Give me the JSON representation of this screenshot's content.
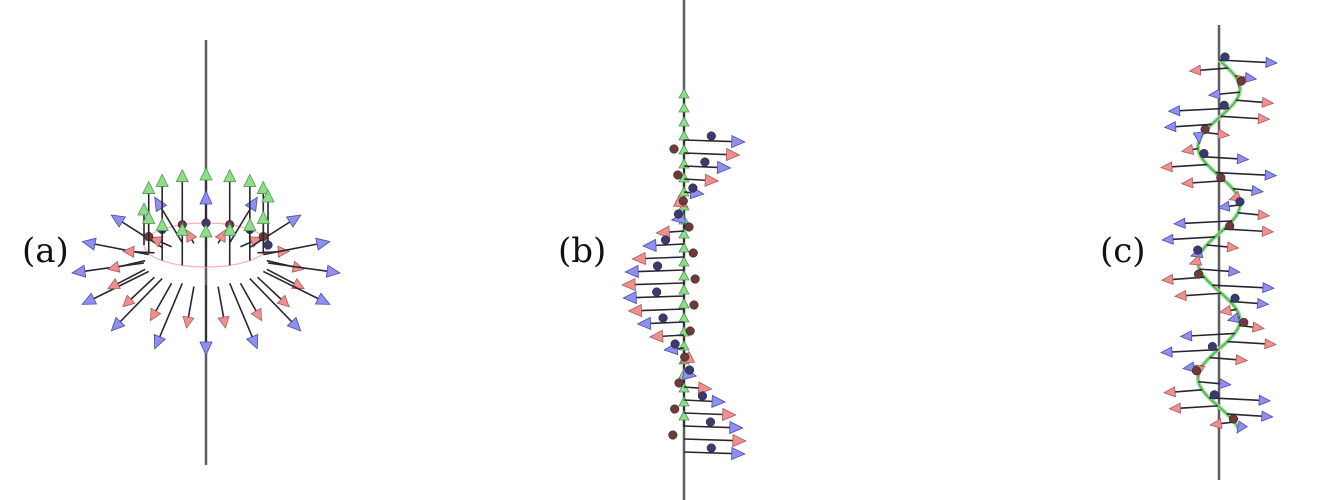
{
  "panels": [
    {
      "label": "(a)",
      "configuration": "ring"
    },
    {
      "label": "(b)",
      "configuration": "single-helix"
    },
    {
      "label": "(c)",
      "configuration": "double-helix"
    }
  ],
  "colors": {
    "axis": "#5f5f5f",
    "shaft": "#2a2630",
    "green_arrow": "#8fdc8c",
    "green_arrow_dark": "#4e9a4b",
    "blue_arrow": "#8f8ff0",
    "blue_arrow_dark": "#4a4aa8",
    "pink_arrow": "#f08f8f",
    "pink_arrow_dark": "#a85a5a",
    "blue_ball": "#3a3a6e",
    "pink_ball": "#6e3a3a",
    "light_blue_line": "#b9b9ee",
    "light_pink_line": "#f2b3b3"
  }
}
